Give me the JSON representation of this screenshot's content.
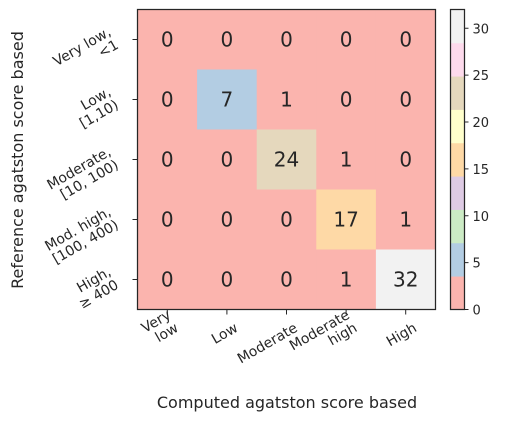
{
  "chart_data": {
    "type": "heatmap",
    "title": "",
    "xlabel": "Computed agatston score based",
    "ylabel": "Reference agatston score based",
    "x_categories": [
      [
        "Very",
        "low"
      ],
      [
        "Low"
      ],
      [
        "Moderate"
      ],
      [
        "Moderate",
        "high"
      ],
      [
        "High"
      ]
    ],
    "y_categories": [
      [
        "Very low,",
        "<1"
      ],
      [
        "Low,",
        "[1,10)"
      ],
      [
        "Moderate,",
        "[10, 100)"
      ],
      [
        "Mod. high,",
        "[100, 400)"
      ],
      [
        "High,",
        "≥ 400"
      ]
    ],
    "values": [
      [
        0,
        0,
        0,
        0,
        0
      ],
      [
        0,
        7,
        1,
        0,
        0
      ],
      [
        0,
        0,
        24,
        1,
        0
      ],
      [
        0,
        0,
        0,
        17,
        1
      ],
      [
        0,
        0,
        0,
        1,
        32
      ]
    ],
    "colormap": "Pastel1",
    "vmin": 0,
    "vmax": 32,
    "colorbar_ticks": [
      0,
      5,
      10,
      15,
      20,
      25,
      30
    ],
    "colorbar_colors": [
      "#fbb4ae",
      "#b3cde3",
      "#ccebc5",
      "#decbe4",
      "#fed9a6",
      "#ffffcc",
      "#e5d8bd",
      "#fddaec",
      "#f2f2f2"
    ]
  }
}
